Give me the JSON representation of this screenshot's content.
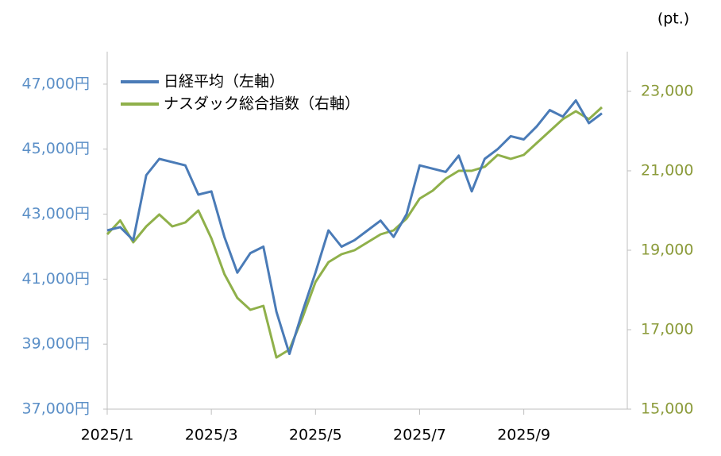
{
  "chart_data": {
    "type": "line",
    "unit_label": "(pt.)",
    "categories": [
      "2025/1",
      null,
      null,
      null,
      null,
      null,
      null,
      null,
      "2025/3",
      null,
      null,
      null,
      null,
      null,
      null,
      null,
      "2025/5",
      null,
      null,
      null,
      null,
      null,
      null,
      null,
      "2025/7",
      null,
      null,
      null,
      null,
      null,
      null,
      null,
      "2025/9",
      null,
      null,
      null,
      null,
      null,
      null
    ],
    "series": [
      {
        "name": "日経平均（左軸）",
        "color": "#4a7bb7",
        "values": [
          42500,
          42600,
          42200,
          44200,
          44700,
          44600,
          44500,
          43600,
          43700,
          42300,
          41200,
          41800,
          42000,
          40000,
          38700,
          40000,
          41200,
          42500,
          42000,
          42200,
          42500,
          42800,
          42300,
          43000,
          44500,
          44400,
          44300,
          44800,
          43700,
          44700,
          45000,
          45400,
          45300,
          45700,
          46200,
          46000,
          46500,
          45800,
          46100
        ]
      },
      {
        "name": "ナスダック総合指数（右軸）",
        "color": "#8fb04a",
        "axis": "y2",
        "values": [
          19400,
          19750,
          19200,
          19600,
          19900,
          19600,
          19700,
          20000,
          19300,
          18400,
          17800,
          17500,
          17600,
          16300,
          16500,
          17300,
          18200,
          18700,
          18900,
          19000,
          19200,
          19400,
          19500,
          19800,
          20300,
          20500,
          20800,
          21000,
          21000,
          21100,
          21400,
          21300,
          21400,
          21700,
          22000,
          22300,
          22500,
          22300,
          22600
        ]
      }
    ],
    "ylim": [
      37000,
      48000
    ],
    "yticks": [
      {
        "value": 37000,
        "label": "37,000円"
      },
      {
        "value": 39000,
        "label": "39,000円"
      },
      {
        "value": 41000,
        "label": "41,000円"
      },
      {
        "value": 43000,
        "label": "43,000円"
      },
      {
        "value": 45000,
        "label": "45,000円"
      },
      {
        "value": 47000,
        "label": "47,000円"
      }
    ],
    "y2lim": [
      15000,
      24000
    ],
    "y2ticks": [
      {
        "value": 15000,
        "label": "15,000"
      },
      {
        "value": 17000,
        "label": "17,000"
      },
      {
        "value": 19000,
        "label": "19,000"
      },
      {
        "value": 21000,
        "label": "21,000"
      },
      {
        "value": 23000,
        "label": "23,000"
      }
    ],
    "ytick_color": "#5b8fc7",
    "y2tick_color": "#8b9b3a",
    "grid": false,
    "legend": "upper left"
  }
}
